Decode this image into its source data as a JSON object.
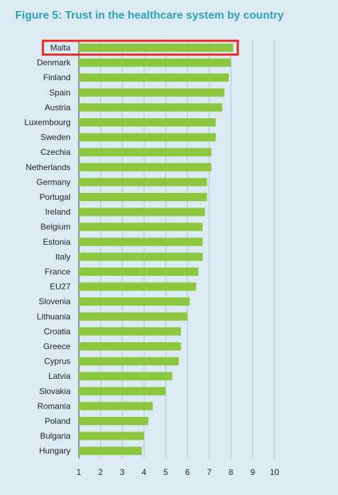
{
  "chart_data": {
    "type": "bar",
    "orientation": "horizontal",
    "title": "Figure 5: Trust in the healthcare system by country",
    "categories": [
      "Malta",
      "Denmark",
      "Finland",
      "Spain",
      "Austria",
      "Luxembourg",
      "Sweden",
      "Czechia",
      "Netherlands",
      "Germany",
      "Portugal",
      "Ireland",
      "Belgium",
      "Estonia",
      "Italy",
      "France",
      "EU27",
      "Slovenia",
      "Lithuania",
      "Croatia",
      "Greece",
      "Cyprus",
      "Latvia",
      "Slovakia",
      "Romania",
      "Poland",
      "Bulgaria",
      "Hungary"
    ],
    "values": [
      8.1,
      8.0,
      7.9,
      7.7,
      7.6,
      7.3,
      7.3,
      7.1,
      7.1,
      6.9,
      6.9,
      6.8,
      6.7,
      6.7,
      6.7,
      6.5,
      6.4,
      6.1,
      6.0,
      5.7,
      5.7,
      5.6,
      5.3,
      5.0,
      4.4,
      4.2,
      4.0,
      3.9
    ],
    "xlim": [
      1,
      10
    ],
    "xticks": [
      1,
      2,
      3,
      4,
      5,
      6,
      7,
      8,
      9,
      10
    ],
    "grid": true,
    "highlight": "Malta",
    "colors": {
      "bar": "#8dc63f",
      "highlight_box": "#e8231c",
      "grid": "#a9c6d4",
      "background": "#dcebf3",
      "title": "#2aa3b8"
    }
  }
}
